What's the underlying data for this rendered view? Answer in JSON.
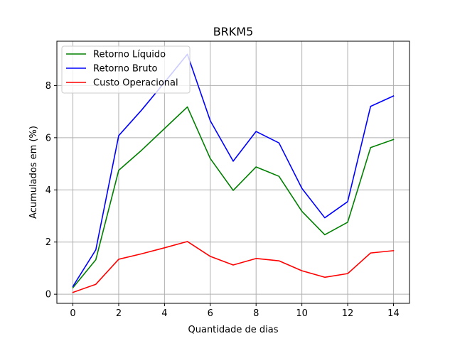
{
  "chart_data": {
    "type": "line",
    "title": "BRKM5",
    "xlabel": "Quantidade de dias",
    "ylabel": "Acumulados em (%)",
    "x": [
      0,
      1,
      2,
      3,
      4,
      5,
      6,
      7,
      8,
      9,
      10,
      11,
      12,
      13,
      14
    ],
    "xlim": [
      -0.7,
      14.7
    ],
    "ylim": [
      -0.35,
      9.7
    ],
    "xticks": [
      0,
      2,
      4,
      6,
      8,
      10,
      12,
      14
    ],
    "yticks": [
      0,
      2,
      4,
      6,
      8
    ],
    "grid": true,
    "legend_position": "top-left",
    "series": [
      {
        "name": "Retorno Líquido",
        "color": "#008000",
        "values": [
          0.25,
          1.32,
          4.75,
          5.52,
          6.35,
          7.18,
          5.2,
          3.98,
          4.88,
          4.52,
          3.18,
          2.28,
          2.76,
          5.62,
          5.93
        ]
      },
      {
        "name": "Retorno Bruto",
        "color": "#0000ff",
        "values": [
          0.3,
          1.7,
          6.08,
          7.06,
          8.12,
          9.2,
          6.65,
          5.1,
          6.24,
          5.8,
          4.06,
          2.93,
          3.55,
          7.2,
          7.6
        ]
      },
      {
        "name": "Custo Operacional",
        "color": "#ff0000",
        "values": [
          0.07,
          0.38,
          1.34,
          1.55,
          1.78,
          2.02,
          1.45,
          1.12,
          1.37,
          1.28,
          0.9,
          0.65,
          0.79,
          1.58,
          1.67
        ]
      }
    ]
  }
}
